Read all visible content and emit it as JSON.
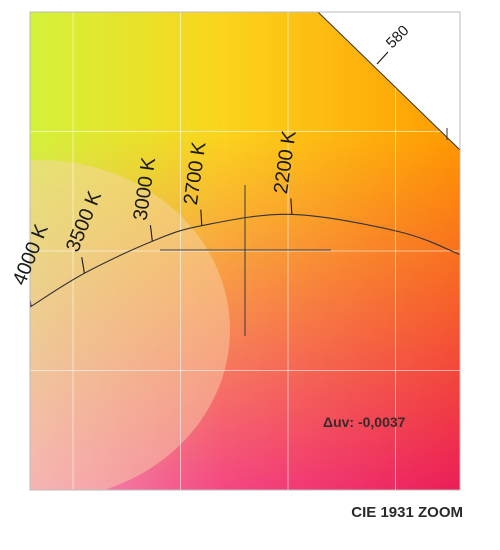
{
  "chart_data": {
    "type": "chromaticity-zoom",
    "title": "CIE 1931 ZOOM",
    "xlim": [
      0.38,
      0.58
    ],
    "ylim": [
      0.3,
      0.5
    ],
    "grid": true,
    "planckian_locus": [
      {
        "cct_label": "4000 K",
        "x": 0.3805,
        "y": 0.3768
      },
      {
        "cct_label": "3500 K",
        "x": 0.4053,
        "y": 0.3907
      },
      {
        "cct_label": "3000 K",
        "x": 0.4369,
        "y": 0.4041
      },
      {
        "cct_label": "2700 K",
        "x": 0.4599,
        "y": 0.4106
      },
      {
        "cct_label": "2200 K",
        "x": 0.5018,
        "y": 0.4153
      }
    ],
    "spectral_locus_label": "580",
    "measurement": {
      "x": 0.4568,
      "y": 0.3989,
      "duv_label": "Δuv: -0,0037"
    },
    "colors": {
      "top_left": "#d3f23a",
      "top_right": "#ff9a00",
      "bottom_left": "#f49ab7",
      "bottom_right": "#ec1e58"
    }
  }
}
